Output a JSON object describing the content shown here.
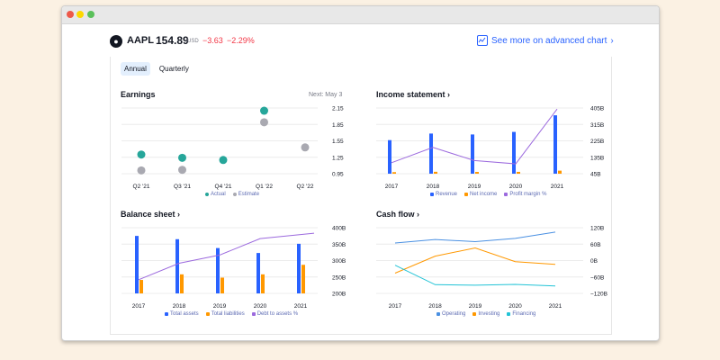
{
  "header": {
    "logo_icon": "apple-logo",
    "ticker": "AAPL",
    "price": "154.89",
    "currency": "USD",
    "change": "−3.63",
    "change_pct": "−2.29%",
    "advanced_link": "See more on advanced chart",
    "advanced_chev": "›"
  },
  "tabs": [
    {
      "label": "Annual",
      "active": true
    },
    {
      "label": "Quarterly",
      "active": false
    }
  ],
  "colors": {
    "actual": "#26a69a",
    "estimate": "#a9a9b1",
    "revenue": "#2962ff",
    "net_income": "#ff9800",
    "margin": "#9c6ade",
    "operating": "#4a90e2",
    "investing": "#ff9800",
    "financing": "#22c3d6",
    "negative": "#f23645"
  },
  "panels": {
    "earnings": {
      "title": "Earnings",
      "next": "Next: May 3"
    },
    "income": {
      "title": "Income statement",
      "chev": "›"
    },
    "balance": {
      "title": "Balance sheet",
      "chev": "›"
    },
    "cashflow": {
      "title": "Cash flow",
      "chev": "›"
    }
  },
  "chart_data": [
    {
      "id": "earnings",
      "type": "scatter",
      "categories": [
        "Q2 '21",
        "Q3 '21",
        "Q4 '21",
        "Q1 '22",
        "Q2 '22"
      ],
      "series": [
        {
          "name": "Actual",
          "values": [
            1.3,
            1.24,
            1.2,
            2.1,
            null
          ]
        },
        {
          "name": "Estimate",
          "values": [
            1.01,
            1.02,
            null,
            1.89,
            1.43
          ]
        }
      ],
      "yticks": [
        "2.15",
        "1.85",
        "1.55",
        "1.25",
        "0.95"
      ],
      "ylim": [
        0.95,
        2.15
      ]
    },
    {
      "id": "income",
      "type": "bar",
      "categories": [
        "2017",
        "2018",
        "2019",
        "2020",
        "2021"
      ],
      "series": [
        {
          "name": "Revenue",
          "values": [
            229,
            265,
            260,
            274,
            365
          ]
        },
        {
          "name": "Net income",
          "values": [
            48,
            59,
            55,
            57,
            94
          ]
        },
        {
          "name": "Profit margin %",
          "values": [
            21,
            22.4,
            21.2,
            20.9,
            25.9
          ]
        }
      ],
      "yticks": [
        "405B",
        "315B",
        "225B",
        "135B",
        "45B"
      ],
      "ylim": [
        45,
        405
      ]
    },
    {
      "id": "balance",
      "type": "bar",
      "categories": [
        "2017",
        "2018",
        "2019",
        "2020",
        "2021"
      ],
      "series": [
        {
          "name": "Total assets",
          "values": [
            375,
            365,
            338,
            323,
            351
          ]
        },
        {
          "name": "Total liabilities",
          "values": [
            241,
            258,
            248,
            258,
            287
          ]
        },
        {
          "name": "Debt to assets %",
          "values": [
            25,
            31,
            34,
            40,
            42
          ]
        }
      ],
      "yticks": [
        "400B",
        "350B",
        "300B",
        "250B",
        "200B"
      ],
      "ylim": [
        200,
        400
      ]
    },
    {
      "id": "cashflow",
      "type": "line",
      "categories": [
        "2017",
        "2018",
        "2019",
        "2020",
        "2021"
      ],
      "series": [
        {
          "name": "Operating",
          "values": [
            64,
            77,
            69,
            81,
            104
          ]
        },
        {
          "name": "Investing",
          "values": [
            -46,
            16,
            46,
            -4,
            -14
          ]
        },
        {
          "name": "Financing",
          "values": [
            -17,
            -88,
            -90,
            -87,
            -93
          ]
        }
      ],
      "yticks": [
        "120B",
        "60B",
        "0B",
        "−60B",
        "−120B"
      ],
      "ylim": [
        -120,
        120
      ]
    }
  ]
}
